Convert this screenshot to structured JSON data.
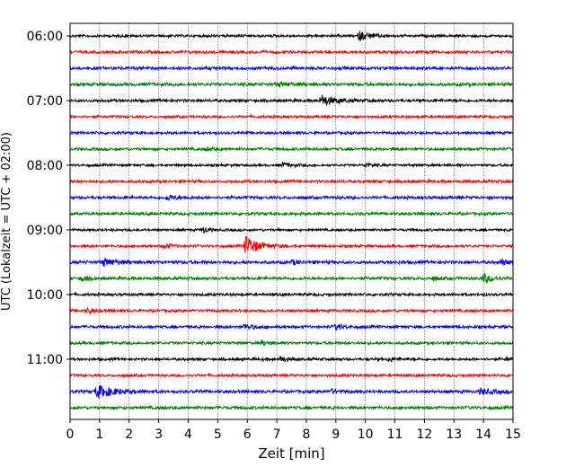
{
  "chart_data": {
    "type": "line",
    "title": "",
    "xlabel": "Zeit  [min]",
    "ylabel": "UTC (Lokalzeit = UTC + 02:00)",
    "xlim": [
      0,
      15
    ],
    "x_ticks": [
      "0",
      "1",
      "2",
      "3",
      "4",
      "5",
      "6",
      "7",
      "8",
      "9",
      "10",
      "11",
      "12",
      "13",
      "14",
      "15"
    ],
    "grid": "vertical dotted",
    "trace_interval_minutes": 15,
    "hour_labels": [
      {
        "label": "06:00",
        "row": 0
      },
      {
        "label": "07:00",
        "row": 4
      },
      {
        "label": "08:00",
        "row": 8
      },
      {
        "label": "09:00",
        "row": 12
      },
      {
        "label": "10:00",
        "row": 16
      },
      {
        "label": "11:00",
        "row": 20
      }
    ],
    "trace_colors": [
      "#000000",
      "#ff0000",
      "#0000ff",
      "#008000"
    ],
    "traces": [
      {
        "start": "06:00",
        "color": "#000000",
        "noise": 1.3,
        "bursts": [
          {
            "t": 9.8,
            "amp": 5,
            "dur": 0.7
          }
        ]
      },
      {
        "start": "06:15",
        "color": "#ff0000",
        "noise": 1.4,
        "bursts": []
      },
      {
        "start": "06:30",
        "color": "#0000ff",
        "noise": 1.5,
        "bursts": []
      },
      {
        "start": "06:45",
        "color": "#008000",
        "noise": 1.6,
        "bursts": [
          {
            "t": 7.0,
            "amp": 2,
            "dur": 1.0
          }
        ]
      },
      {
        "start": "07:00",
        "color": "#000000",
        "noise": 1.4,
        "bursts": [
          {
            "t": 8.5,
            "amp": 6,
            "dur": 0.9
          }
        ]
      },
      {
        "start": "07:15",
        "color": "#ff0000",
        "noise": 1.3,
        "bursts": []
      },
      {
        "start": "07:30",
        "color": "#0000ff",
        "noise": 1.3,
        "bursts": []
      },
      {
        "start": "07:45",
        "color": "#008000",
        "noise": 1.4,
        "bursts": [
          {
            "t": 4.6,
            "amp": 2,
            "dur": 0.5
          }
        ]
      },
      {
        "start": "08:00",
        "color": "#000000",
        "noise": 1.2,
        "bursts": [
          {
            "t": 7.2,
            "amp": 2.5,
            "dur": 0.5
          },
          {
            "t": 10.0,
            "amp": 2.5,
            "dur": 0.4
          }
        ]
      },
      {
        "start": "08:15",
        "color": "#ff0000",
        "noise": 1.4,
        "bursts": []
      },
      {
        "start": "08:30",
        "color": "#0000ff",
        "noise": 1.5,
        "bursts": [
          {
            "t": 3.3,
            "amp": 3,
            "dur": 0.5
          }
        ]
      },
      {
        "start": "08:45",
        "color": "#008000",
        "noise": 1.5,
        "bursts": []
      },
      {
        "start": "09:00",
        "color": "#000000",
        "noise": 1.2,
        "bursts": [
          {
            "t": 4.5,
            "amp": 3,
            "dur": 0.4
          }
        ]
      },
      {
        "start": "09:15",
        "color": "#ff0000",
        "noise": 1.3,
        "bursts": [
          {
            "t": 3.2,
            "amp": 3,
            "dur": 0.4
          },
          {
            "t": 5.95,
            "amp": 11,
            "dur": 0.8
          }
        ]
      },
      {
        "start": "09:30",
        "color": "#0000ff",
        "noise": 1.6,
        "bursts": [
          {
            "t": 1.1,
            "amp": 4,
            "dur": 0.9
          },
          {
            "t": 7.5,
            "amp": 2,
            "dur": 0.5
          },
          {
            "t": 14.6,
            "amp": 2.5,
            "dur": 0.5
          }
        ]
      },
      {
        "start": "09:45",
        "color": "#008000",
        "noise": 1.5,
        "bursts": [
          {
            "t": 0.4,
            "amp": 3,
            "dur": 0.4
          },
          {
            "t": 14.0,
            "amp": 5,
            "dur": 0.6
          },
          {
            "t": 12.3,
            "amp": 2,
            "dur": 0.4
          }
        ]
      },
      {
        "start": "10:00",
        "color": "#000000",
        "noise": 1.3,
        "bursts": []
      },
      {
        "start": "10:15",
        "color": "#ff0000",
        "noise": 1.4,
        "bursts": [
          {
            "t": 0.6,
            "amp": 2.5,
            "dur": 0.5
          }
        ]
      },
      {
        "start": "10:30",
        "color": "#0000ff",
        "noise": 1.4,
        "bursts": [
          {
            "t": 5.9,
            "amp": 3,
            "dur": 0.6
          },
          {
            "t": 9.0,
            "amp": 3,
            "dur": 0.5
          }
        ]
      },
      {
        "start": "10:45",
        "color": "#008000",
        "noise": 1.4,
        "bursts": [
          {
            "t": 6.5,
            "amp": 2,
            "dur": 0.5
          }
        ]
      },
      {
        "start": "11:00",
        "color": "#000000",
        "noise": 1.3,
        "bursts": [
          {
            "t": 7.1,
            "amp": 3,
            "dur": 0.5
          },
          {
            "t": 10.8,
            "amp": 2.5,
            "dur": 0.5
          },
          {
            "t": 14.8,
            "amp": 2,
            "dur": 0.3
          }
        ]
      },
      {
        "start": "11:15",
        "color": "#ff0000",
        "noise": 1.3,
        "bursts": []
      },
      {
        "start": "11:30",
        "color": "#0000ff",
        "noise": 1.5,
        "bursts": [
          {
            "t": 0.9,
            "amp": 7,
            "dur": 1.2
          },
          {
            "t": 13.9,
            "amp": 3,
            "dur": 0.9
          },
          {
            "t": 8.8,
            "amp": 2,
            "dur": 0.6
          }
        ]
      },
      {
        "start": "11:45",
        "color": "#008000",
        "noise": 1.5,
        "bursts": []
      }
    ]
  }
}
